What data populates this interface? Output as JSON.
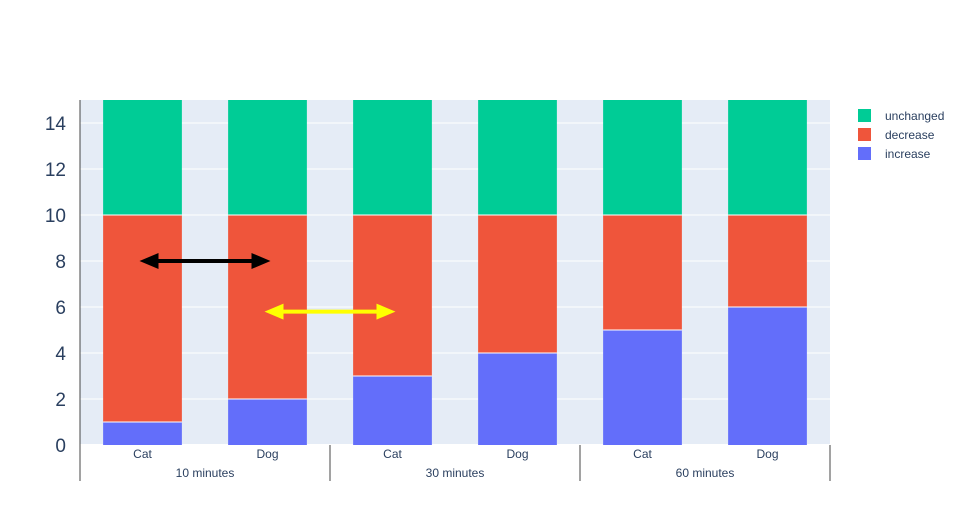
{
  "chart_data": {
    "type": "bar",
    "barmode": "stack",
    "x_groups": [
      "10 minutes",
      "10 minutes",
      "30 minutes",
      "30 minutes",
      "60 minutes",
      "60 minutes"
    ],
    "categories": [
      "Cat",
      "Dog",
      "Cat",
      "Dog",
      "Cat",
      "Dog"
    ],
    "group_labels": [
      "10 minutes",
      "30 minutes",
      "60 minutes"
    ],
    "series": [
      {
        "name": "increase",
        "color": "#636efa",
        "values": [
          1,
          2,
          3,
          4,
          5,
          6
        ]
      },
      {
        "name": "decrease",
        "color": "#ef553b",
        "values": [
          9,
          8,
          7,
          6,
          5,
          4
        ]
      },
      {
        "name": "unchanged",
        "color": "#00cc96",
        "values": [
          5,
          5,
          5,
          5,
          5,
          5
        ]
      }
    ],
    "ylim": [
      0,
      15
    ],
    "yticks": [
      "0",
      "2",
      "4",
      "6",
      "8",
      "10",
      "12",
      "14"
    ],
    "grid": true,
    "legend": {
      "placement": "right",
      "order": [
        "unchanged",
        "decrease",
        "increase"
      ]
    },
    "annotations": [
      {
        "type": "double-arrow",
        "color": "#000000",
        "from": {
          "bar": 0,
          "y": 8
        },
        "to": {
          "bar": 1,
          "y": 8
        }
      },
      {
        "type": "double-arrow",
        "color": "#ffff00",
        "from": {
          "bar": 1,
          "y": 5.8
        },
        "to": {
          "bar": 2,
          "y": 5.8
        }
      }
    ],
    "plot_bg": "#e5ecf6",
    "text_color": "#2a3f5f"
  }
}
